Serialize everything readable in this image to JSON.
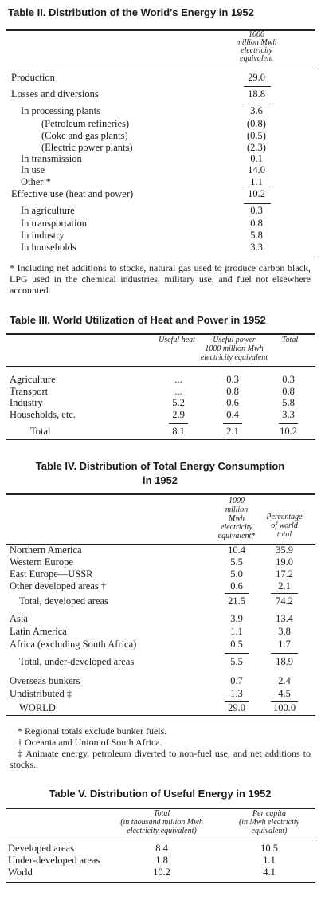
{
  "table_ii": {
    "title": "Table II. Distribution of the World's Energy in 1952",
    "header": [
      "1000",
      "million Mwh",
      "electricity",
      "equivalent"
    ],
    "rows": [
      [
        "Production",
        "29.0"
      ],
      [
        "Losses and diversions",
        "18.8"
      ],
      [
        "In processing plants",
        "3.6"
      ],
      [
        "(Petroleum refineries)",
        "(0.8)"
      ],
      [
        "(Coke and gas plants)",
        "(0.5)"
      ],
      [
        "(Electric power plants)",
        "(2.3)"
      ],
      [
        "In transmission",
        "0.1"
      ],
      [
        "In use",
        "14.0"
      ],
      [
        "Other *",
        "1.1"
      ],
      [
        "Effective use (heat and power)",
        "10.2"
      ],
      [
        "In agriculture",
        "0.3"
      ],
      [
        "In transportation",
        "0.8"
      ],
      [
        "In industry",
        "5.8"
      ],
      [
        "In households",
        "3.3"
      ]
    ],
    "footnote": "* Including net additions to stocks, natural gas used to produce carbon black, LPG used in the chemical industries, military use, and fuel not elsewhere accounted."
  },
  "table_iii": {
    "title": "Table III. World Utilization of Heat and Power in 1952",
    "header": {
      "useful_heat": "Useful heat",
      "useful_power": "Useful power",
      "total": "Total",
      "unit": [
        "1000 million Mwh",
        "electricity equivalent"
      ]
    },
    "rows": [
      [
        "Agriculture",
        "...",
        "0.3",
        "0.3"
      ],
      [
        "Transport",
        "...",
        "0.8",
        "0.8"
      ],
      [
        "Industry",
        "5.2",
        "0.6",
        "5.8"
      ],
      [
        "Households, etc.",
        "2.9",
        "0.4",
        "3.3"
      ],
      [
        "Total",
        "8.1",
        "2.1",
        "10.2"
      ]
    ]
  },
  "table_iv": {
    "title": [
      "Table IV. Distribution of Total Energy Consumption",
      "in 1952"
    ],
    "header": [
      [
        "1000",
        "million",
        "Mwh",
        "electricity",
        "equivalent*"
      ],
      [
        "Percentage",
        "of world",
        "total"
      ]
    ],
    "rows": [
      [
        "Northern America",
        "10.4",
        "35.9"
      ],
      [
        "Western Europe",
        "5.5",
        "19.0"
      ],
      [
        "East Europe—USSR",
        "5.0",
        "17.2"
      ],
      [
        "Other developed areas †",
        "0.6",
        "2.1"
      ],
      [
        "Total, developed areas",
        "21.5",
        "74.2"
      ],
      [
        "Asia",
        "3.9",
        "13.4"
      ],
      [
        "Latin America",
        "1.1",
        "3.8"
      ],
      [
        "Africa (excluding South Africa)",
        "0.5",
        "1.7"
      ],
      [
        "Total, under-developed areas",
        "5.5",
        "18.9"
      ],
      [
        "Overseas bunkers",
        "0.7",
        "2.4"
      ],
      [
        "Undistributed ‡",
        "1.3",
        "4.5"
      ],
      [
        "WORLD",
        "29.0",
        "100.0"
      ]
    ],
    "footnotes": [
      "* Regional totals exclude bunker fuels.",
      "† Oceania and Union of South Africa.",
      "‡ Animate energy, petroleum diverted to non-fuel use, and net additions to stocks."
    ]
  },
  "table_v": {
    "title": "Table V. Distribution of Useful Energy in 1952",
    "header": [
      [
        "Total",
        "(in thousand million Mwh",
        "electricity equivalent)"
      ],
      [
        "Per capita",
        "(in Mwh electricity",
        "equivalent)"
      ]
    ],
    "rows": [
      [
        "Developed areas",
        "8.4",
        "10.5"
      ],
      [
        "Under-developed areas",
        "1.8",
        "1.1"
      ],
      [
        "World",
        "10.2",
        "4.1"
      ]
    ]
  }
}
